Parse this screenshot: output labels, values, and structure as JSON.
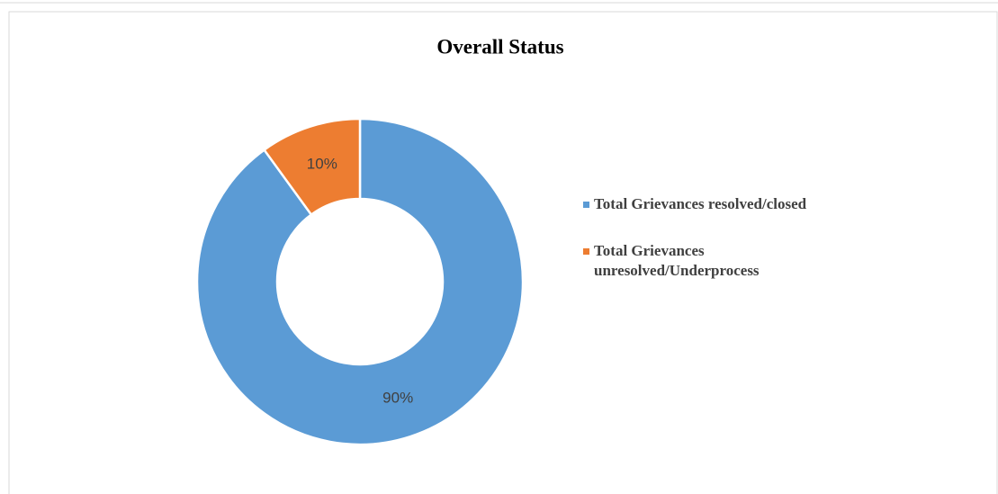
{
  "chart_data": {
    "type": "pie",
    "title": "Overall Status",
    "categories": [
      "Total Grievances resolved/closed",
      "Total Grievances unresolved/Underprocess"
    ],
    "values": [
      90,
      10
    ],
    "value_labels": [
      "90%",
      "10%"
    ],
    "colors": [
      "#5b9bd5",
      "#ed7d31"
    ],
    "donut": true,
    "legend": "right"
  }
}
